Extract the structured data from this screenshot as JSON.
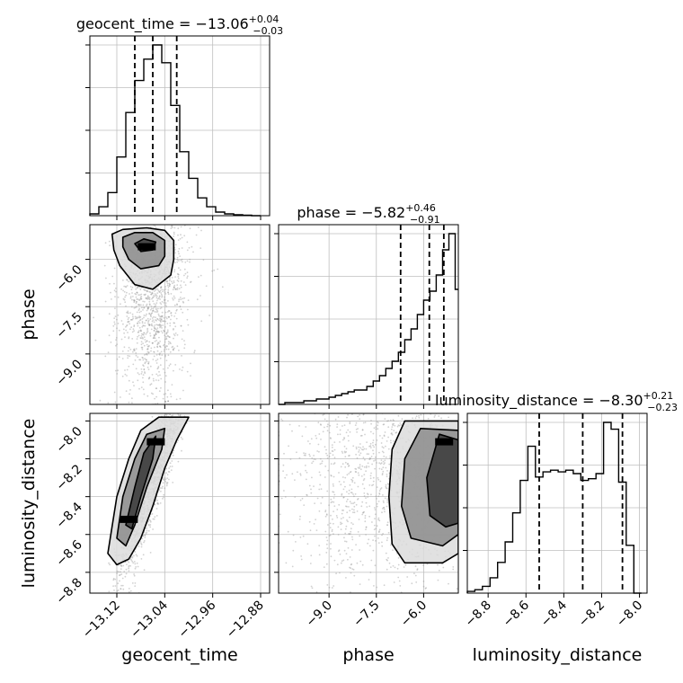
{
  "chart_data": {
    "type": "corner",
    "parameters": [
      "geocent_time",
      "phase",
      "luminosity_distance"
    ],
    "axis_labels": {
      "x": [
        "geocent_time",
        "phase",
        "luminosity_distance"
      ],
      "y": [
        "phase",
        "luminosity_distance"
      ]
    },
    "grid": true,
    "titles": [
      {
        "param": "geocent_time",
        "text": "geocent_time = −13.06",
        "sup": "+0.04",
        "sub": "−0.03"
      },
      {
        "param": "phase",
        "text": "phase = −5.82",
        "sup": "+0.46",
        "sub": "−0.91"
      },
      {
        "param": "luminosity_distance",
        "text": "luminosity_distance = −8.30",
        "sup": "+0.21",
        "sub": "−0.23"
      }
    ],
    "ranges": {
      "geocent_time": [
        -13.165,
        -12.865
      ],
      "phase": [
        -10.6,
        -4.9
      ],
      "luminosity_distance": [
        -8.91,
        -7.96
      ]
    },
    "ticks": {
      "geocent_time": {
        "values": [
          -13.12,
          -13.04,
          -12.96,
          -12.88
        ],
        "labels": [
          "−13.12",
          "−13.04",
          "−12.96",
          "−12.88"
        ]
      },
      "phase": {
        "values": [
          -9.0,
          -7.5,
          -6.0
        ],
        "labels": [
          "−9.0",
          "−7.5",
          "−6.0"
        ]
      },
      "luminosity_distance": {
        "values": [
          -8.8,
          -8.6,
          -8.4,
          -8.2,
          -8.0
        ],
        "labels": [
          "−8.8",
          "−8.6",
          "−8.4",
          "−8.2",
          "−8.0"
        ]
      }
    },
    "quantile_lines": {
      "geocent_time": [
        -13.09,
        -13.06,
        -13.02
      ],
      "phase": [
        -6.73,
        -5.82,
        -5.36
      ],
      "luminosity_distance": [
        -8.53,
        -8.3,
        -8.09
      ]
    },
    "histograms": {
      "geocent_time": {
        "edges": [
          -13.165,
          -13.15,
          -13.135,
          -13.12,
          -13.105,
          -13.09,
          -13.075,
          -13.06,
          -13.045,
          -13.03,
          -13.015,
          -13.0,
          -12.985,
          -12.97,
          -12.955,
          -12.94,
          -12.925,
          -12.91,
          -12.895,
          -12.88
        ],
        "counts": [
          0.01,
          0.05,
          0.13,
          0.33,
          0.58,
          0.76,
          0.88,
          0.96,
          0.86,
          0.62,
          0.36,
          0.21,
          0.1,
          0.05,
          0.02,
          0.01,
          0.005,
          0.003,
          0.0
        ]
      },
      "phase": {
        "edges": [
          -10.6,
          -10.4,
          -10.2,
          -10.0,
          -9.8,
          -9.6,
          -9.4,
          -9.2,
          -9.0,
          -8.8,
          -8.6,
          -8.4,
          -8.2,
          -8.0,
          -7.8,
          -7.6,
          -7.4,
          -7.2,
          -7.0,
          -6.8,
          -6.6,
          -6.4,
          -6.2,
          -6.0,
          -5.8,
          -5.6,
          -5.4,
          -5.2,
          -5.0,
          -4.9
        ],
        "counts": [
          0.0,
          0.01,
          0.01,
          0.01,
          0.02,
          0.02,
          0.03,
          0.03,
          0.04,
          0.05,
          0.06,
          0.07,
          0.08,
          0.08,
          0.1,
          0.13,
          0.16,
          0.2,
          0.24,
          0.29,
          0.36,
          0.42,
          0.5,
          0.58,
          0.63,
          0.72,
          0.86,
          0.95,
          0.64
        ]
      },
      "luminosity_distance": {
        "edges": [
          -8.91,
          -8.87,
          -8.83,
          -8.79,
          -8.75,
          -8.71,
          -8.67,
          -8.63,
          -8.59,
          -8.55,
          -8.51,
          -8.47,
          -8.43,
          -8.39,
          -8.35,
          -8.31,
          -8.27,
          -8.23,
          -8.19,
          -8.15,
          -8.11,
          -8.07,
          -8.03,
          -7.99
        ],
        "counts": [
          0.01,
          0.02,
          0.04,
          0.09,
          0.18,
          0.3,
          0.47,
          0.66,
          0.86,
          0.68,
          0.71,
          0.72,
          0.71,
          0.72,
          0.7,
          0.66,
          0.67,
          0.7,
          1.0,
          0.96,
          0.65,
          0.28,
          0.0
        ]
      }
    },
    "contour_panels": [
      {
        "x": "geocent_time",
        "y": "phase",
        "levels": [
          [
            [
              -13.128,
              -5.2
            ],
            [
              -13.11,
              -5.05
            ],
            [
              -13.07,
              -5.0
            ],
            [
              -13.04,
              -5.08
            ],
            [
              -13.025,
              -5.4
            ],
            [
              -13.025,
              -6.0
            ],
            [
              -13.03,
              -6.5
            ],
            [
              -13.06,
              -6.95
            ],
            [
              -13.09,
              -6.8
            ],
            [
              -13.115,
              -6.2
            ],
            [
              -13.125,
              -5.7
            ]
          ],
          [
            [
              -13.11,
              -5.3
            ],
            [
              -13.09,
              -5.15
            ],
            [
              -13.06,
              -5.15
            ],
            [
              -13.04,
              -5.4
            ],
            [
              -13.04,
              -5.9
            ],
            [
              -13.05,
              -6.2
            ],
            [
              -13.08,
              -6.3
            ],
            [
              -13.1,
              -6.0
            ],
            [
              -13.11,
              -5.6
            ]
          ],
          [
            [
              -13.09,
              -5.5
            ],
            [
              -13.075,
              -5.35
            ],
            [
              -13.055,
              -5.45
            ],
            [
              -13.06,
              -5.7
            ],
            [
              -13.08,
              -5.75
            ]
          ]
        ]
      },
      {
        "x": "geocent_time",
        "y": "luminosity_distance",
        "levels": [
          [
            [
              -13.135,
              -8.7
            ],
            [
              -13.12,
              -8.4
            ],
            [
              -13.1,
              -8.2
            ],
            [
              -13.08,
              -8.05
            ],
            [
              -13.05,
              -7.98
            ],
            [
              -13.0,
              -7.98
            ],
            [
              -13.02,
              -8.1
            ],
            [
              -13.04,
              -8.25
            ],
            [
              -13.06,
              -8.45
            ],
            [
              -13.08,
              -8.62
            ],
            [
              -13.1,
              -8.73
            ],
            [
              -13.12,
              -8.76
            ]
          ],
          [
            [
              -13.12,
              -8.62
            ],
            [
              -13.11,
              -8.4
            ],
            [
              -13.09,
              -8.2
            ],
            [
              -13.07,
              -8.07
            ],
            [
              -13.04,
              -8.04
            ],
            [
              -13.045,
              -8.15
            ],
            [
              -13.07,
              -8.35
            ],
            [
              -13.09,
              -8.55
            ],
            [
              -13.105,
              -8.66
            ]
          ],
          [
            [
              -13.105,
              -8.55
            ],
            [
              -13.09,
              -8.35
            ],
            [
              -13.075,
              -8.17
            ],
            [
              -13.055,
              -8.08
            ],
            [
              -13.06,
              -8.2
            ],
            [
              -13.08,
              -8.4
            ],
            [
              -13.095,
              -8.57
            ]
          ]
        ]
      },
      {
        "x": "phase",
        "y": "luminosity_distance",
        "levels": [
          [
            [
              -4.9,
              -8.0
            ],
            [
              -6.6,
              -8.0
            ],
            [
              -7.0,
              -8.15
            ],
            [
              -7.1,
              -8.4
            ],
            [
              -7.0,
              -8.65
            ],
            [
              -6.6,
              -8.75
            ],
            [
              -5.4,
              -8.75
            ],
            [
              -4.9,
              -8.7
            ]
          ],
          [
            [
              -4.9,
              -8.05
            ],
            [
              -6.1,
              -8.04
            ],
            [
              -6.6,
              -8.2
            ],
            [
              -6.7,
              -8.45
            ],
            [
              -6.4,
              -8.62
            ],
            [
              -5.4,
              -8.66
            ],
            [
              -4.9,
              -8.6
            ]
          ],
          [
            [
              -4.9,
              -8.1
            ],
            [
              -5.5,
              -8.07
            ],
            [
              -5.9,
              -8.3
            ],
            [
              -5.8,
              -8.5
            ],
            [
              -5.3,
              -8.56
            ],
            [
              -4.9,
              -8.54
            ]
          ]
        ]
      }
    ],
    "density_peaks": [
      {
        "x": "geocent_time",
        "y": "phase",
        "point": [
          -13.07,
          -5.6
        ]
      },
      {
        "x": "geocent_time",
        "y": "luminosity_distance",
        "point": [
          -13.1,
          -8.52
        ]
      },
      {
        "x": "geocent_time",
        "y": "luminosity_distance",
        "point": [
          -13.055,
          -8.11
        ]
      },
      {
        "x": "phase",
        "y": "luminosity_distance",
        "point": [
          -5.35,
          -8.11
        ]
      }
    ],
    "colors": {
      "line": "#000000",
      "scatter": "#9a9a9a",
      "grid": "#bfbfbf",
      "fill_dark": "#3a3a3a",
      "fill_mid": "#8c8c8c",
      "fill_light": "#dcdcdc"
    }
  }
}
